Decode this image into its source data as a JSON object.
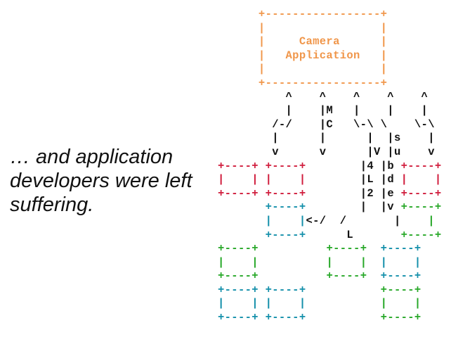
{
  "caption": {
    "lines": [
      "… and application",
      "developers were left",
      "suffering."
    ]
  },
  "diagram": {
    "colors": {
      "camera": "#f0964a",
      "red": "#d01c3c",
      "teal": "#138faa",
      "green": "#27a828",
      "black": "#111111"
    },
    "rows": [
      "      +-----------------+",
      "      |                 |",
      "      |     Camera      |",
      "      |   Application   |",
      "      |                 |",
      "      +-----------------+",
      "          ^    ^    ^    ^    ^",
      "          |    |M   |    |    |",
      "        /-/    |C   \\-\\ \\    \\-\\",
      "        |      |      |  |s    |",
      "        v      v      |V |u    v",
      "+----+ +----+        |4 |b +----+",
      "|    | |    |        |L |d |    |",
      "+----+ +----+        |2 |e +----+",
      "       +----+        |  |v +----+",
      "       |    |<-/  /       |    |",
      "       +----+      L       +----+",
      "+----+          +----+  +----+",
      "|    |          |    |  |    |",
      "+----+          +----+  +----+",
      "+----+ +----+           +----+",
      "|    | |    |           |    |",
      "+----+ +----+           +----+"
    ]
  }
}
